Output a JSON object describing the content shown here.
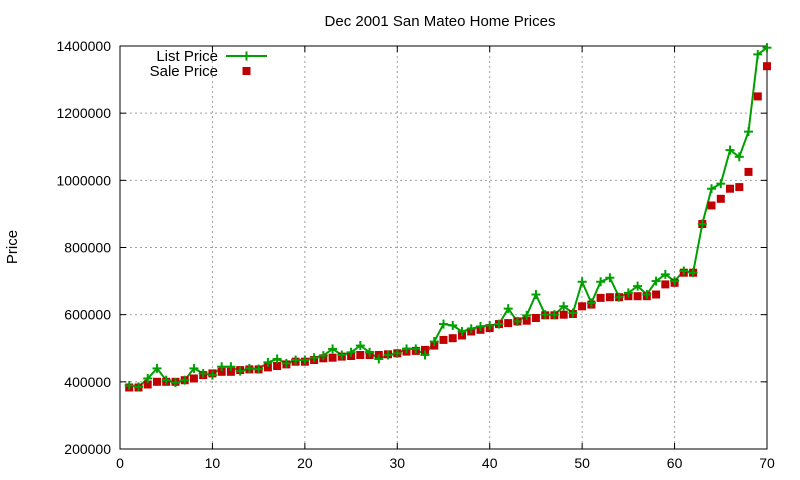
{
  "chart_data": {
    "type": "line",
    "title": "Dec 2001 San Mateo Home Prices",
    "xlabel": "",
    "ylabel": "Price",
    "xlim": [
      0,
      70
    ],
    "ylim": [
      200000,
      1400000
    ],
    "xticks": [
      0,
      10,
      20,
      30,
      40,
      50,
      60,
      70
    ],
    "yticks": [
      200000,
      400000,
      600000,
      800000,
      1000000,
      1200000,
      1400000
    ],
    "grid": true,
    "legend": "top-left",
    "series": [
      {
        "name": "List Price",
        "style": "line+cross",
        "color": "#00a000",
        "x": [
          1,
          2,
          3,
          4,
          5,
          6,
          7,
          8,
          9,
          10,
          11,
          12,
          13,
          14,
          15,
          16,
          17,
          18,
          19,
          20,
          21,
          22,
          23,
          24,
          25,
          26,
          27,
          28,
          29,
          30,
          31,
          32,
          33,
          34,
          35,
          36,
          37,
          38,
          39,
          40,
          41,
          42,
          43,
          44,
          45,
          46,
          47,
          48,
          49,
          50,
          51,
          52,
          53,
          54,
          55,
          56,
          57,
          58,
          59,
          60,
          61,
          62,
          63,
          64,
          65,
          66,
          67,
          68,
          69,
          70
        ],
        "values": [
          389000,
          385000,
          410000,
          440000,
          405000,
          398000,
          405000,
          440000,
          425000,
          420000,
          445000,
          445000,
          432000,
          440000,
          438000,
          458000,
          468000,
          455000,
          465000,
          465000,
          472000,
          478000,
          498000,
          480000,
          488000,
          508000,
          488000,
          468000,
          480000,
          485000,
          498000,
          498000,
          480000,
          520000,
          572000,
          568000,
          550000,
          558000,
          565000,
          568000,
          572000,
          618000,
          580000,
          598000,
          660000,
          600000,
          600000,
          625000,
          605000,
          698000,
          635000,
          698000,
          710000,
          652000,
          665000,
          685000,
          660000,
          700000,
          720000,
          700000,
          730000,
          725000,
          870000,
          975000,
          990000,
          1090000,
          1070000,
          1145000,
          1375000,
          1395000
        ]
      },
      {
        "name": "Sale Price",
        "style": "square",
        "color": "#c00000",
        "x": [
          1,
          2,
          3,
          4,
          5,
          6,
          7,
          8,
          9,
          10,
          11,
          12,
          13,
          14,
          15,
          16,
          17,
          18,
          19,
          20,
          21,
          22,
          23,
          24,
          25,
          26,
          27,
          28,
          29,
          30,
          31,
          32,
          33,
          34,
          35,
          36,
          37,
          38,
          39,
          40,
          41,
          42,
          43,
          44,
          45,
          46,
          47,
          48,
          49,
          50,
          51,
          52,
          53,
          54,
          55,
          56,
          57,
          58,
          59,
          60,
          61,
          62,
          63,
          64,
          65,
          66,
          67,
          68,
          69,
          70
        ],
        "values": [
          383000,
          383000,
          392000,
          400000,
          400000,
          400000,
          405000,
          410000,
          420000,
          425000,
          430000,
          430000,
          435000,
          437000,
          437000,
          443000,
          447000,
          452000,
          460000,
          460000,
          465000,
          470000,
          472000,
          475000,
          477000,
          480000,
          480000,
          480000,
          482000,
          485000,
          490000,
          492000,
          495000,
          508000,
          525000,
          530000,
          538000,
          550000,
          555000,
          560000,
          572000,
          575000,
          580000,
          582000,
          590000,
          598000,
          598000,
          600000,
          602000,
          625000,
          630000,
          650000,
          652000,
          652000,
          655000,
          655000,
          655000,
          660000,
          690000,
          695000,
          725000,
          725000,
          870000,
          925000,
          945000,
          975000,
          980000,
          1025000,
          1250000,
          1340000
        ]
      }
    ]
  }
}
